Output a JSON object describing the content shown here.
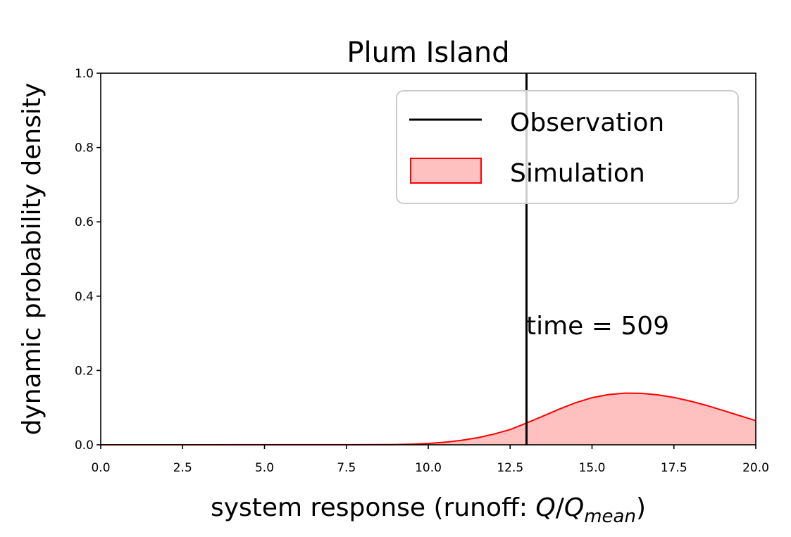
{
  "chart_data": {
    "type": "area",
    "title": "Plum Island",
    "xlabel_prefix": "system response (runoff: ",
    "xlabel_q": "Q",
    "xlabel_slash": "/",
    "xlabel_q2": "Q",
    "xlabel_sub": "mean",
    "xlabel_suffix": ")",
    "ylabel": "dynamic probability density",
    "xlim": [
      0,
      20
    ],
    "ylim": [
      0,
      1
    ],
    "xticks": [
      0,
      2.5,
      5,
      7.5,
      10,
      12.5,
      15,
      17.5,
      20
    ],
    "xtick_labels": [
      "0.0",
      "2.5",
      "5.0",
      "7.5",
      "10.0",
      "12.5",
      "15.0",
      "17.5",
      "20.0"
    ],
    "yticks": [
      0,
      0.2,
      0.4,
      0.6,
      0.8,
      1.0
    ],
    "ytick_labels": [
      "0.0",
      "0.2",
      "0.4",
      "0.6",
      "0.8",
      "1.0"
    ],
    "grid": false,
    "legend_position": "top-right",
    "observation": {
      "name": "Observation",
      "x": 13.0,
      "color": "#000000"
    },
    "simulation": {
      "name": "Simulation",
      "stroke": "#ff0000",
      "fill": "#ffc0c0",
      "x": [
        0,
        8.5,
        9,
        9.5,
        10,
        10.5,
        11,
        11.5,
        12,
        12.5,
        13,
        13.5,
        14,
        14.5,
        15,
        15.5,
        16,
        16.5,
        17,
        17.5,
        18,
        18.5,
        19,
        19.5,
        20
      ],
      "y": [
        0,
        0.0003,
        0.0007,
        0.0017,
        0.0036,
        0.0069,
        0.0119,
        0.019,
        0.0288,
        0.0411,
        0.0585,
        0.0771,
        0.0961,
        0.1133,
        0.1267,
        0.1353,
        0.139,
        0.1385,
        0.1345,
        0.1274,
        0.1177,
        0.1058,
        0.0925,
        0.0786,
        0.065
      ]
    },
    "annotation": "time = 509"
  }
}
